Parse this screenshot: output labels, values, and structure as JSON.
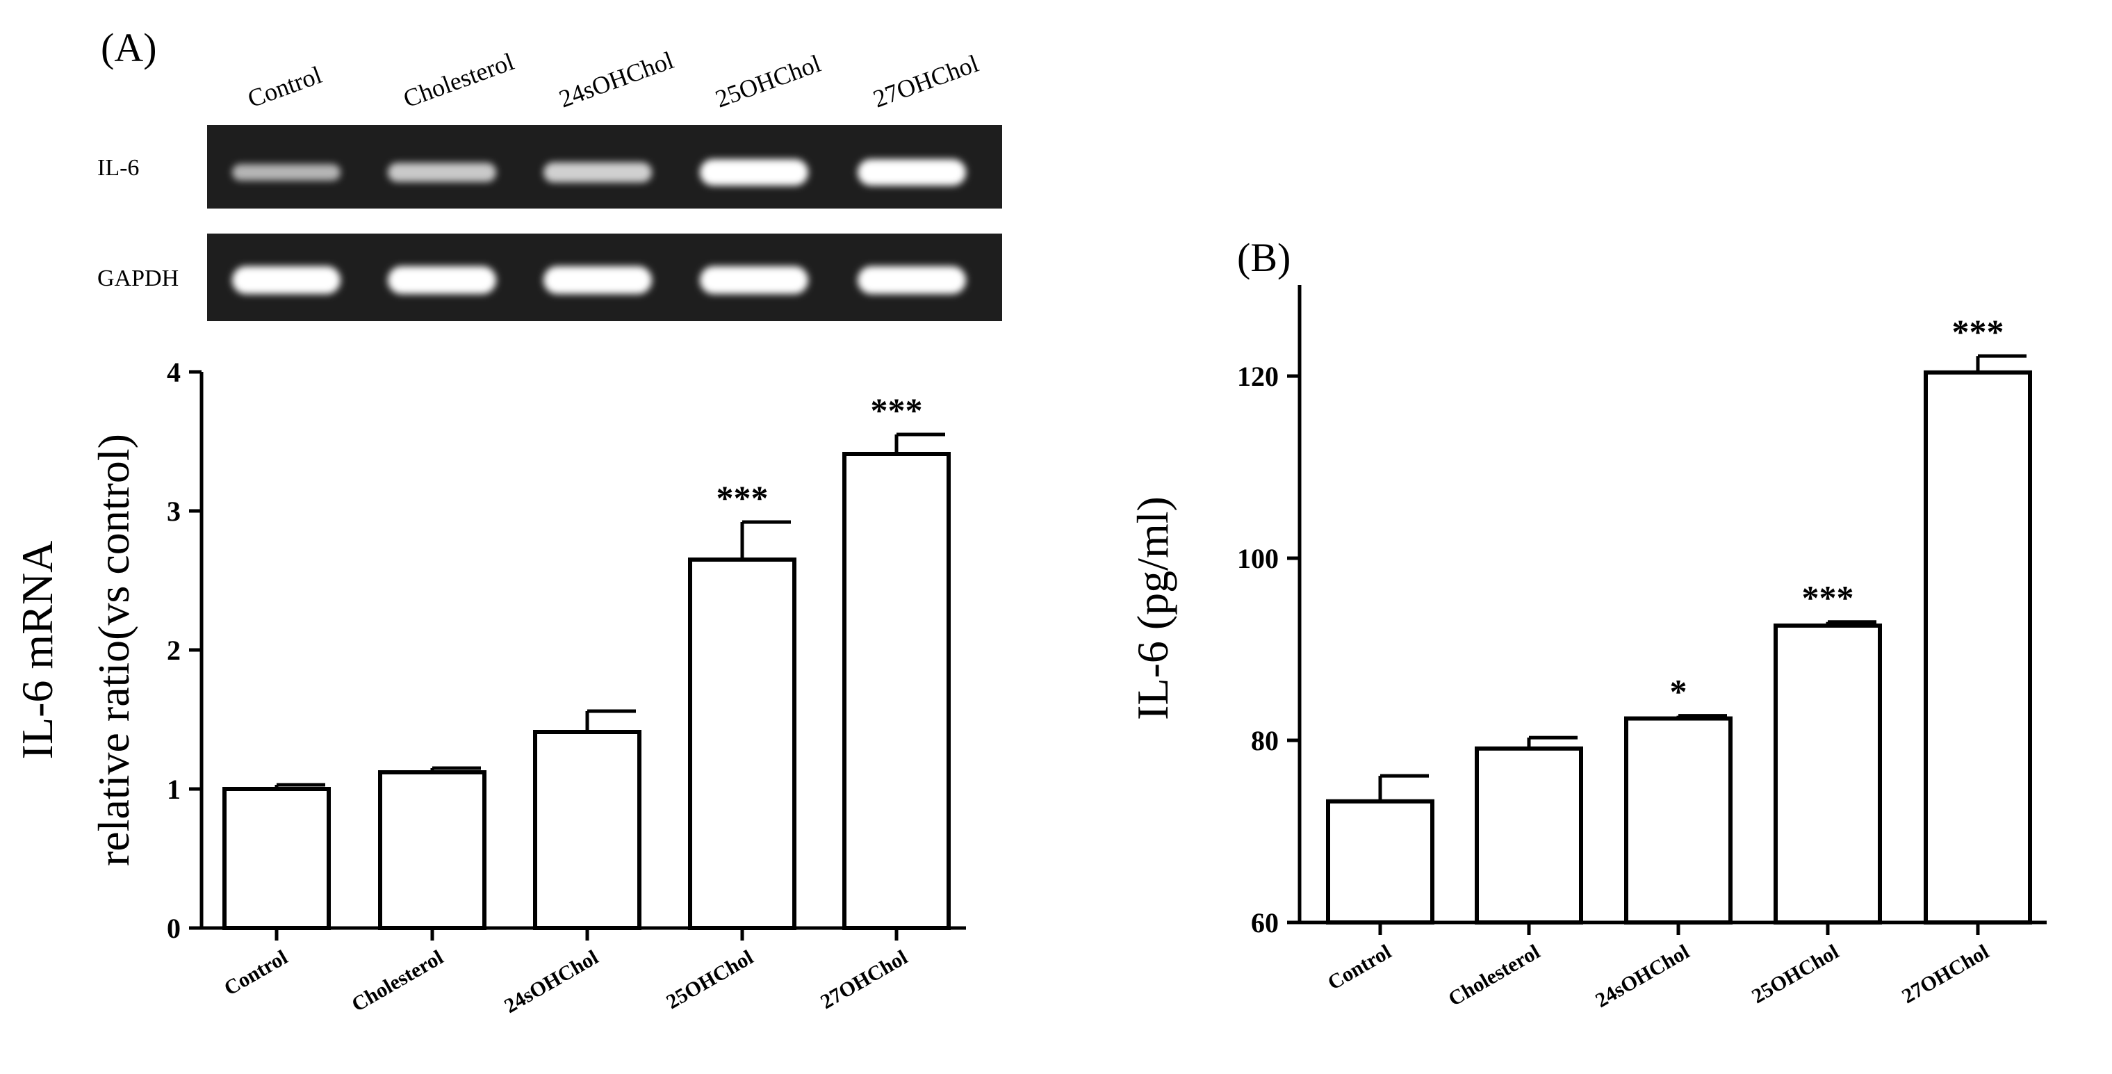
{
  "chart_data": [
    {
      "panel": "(A)",
      "type": "bar",
      "gel": {
        "lanes": [
          "Control",
          "Cholesterol",
          "24sOHChol",
          "25OHChol",
          "27OHChol"
        ],
        "rows": [
          {
            "name": "IL-6",
            "intensity": [
              0.45,
              0.6,
              0.65,
              1.0,
              1.0
            ]
          },
          {
            "name": "GAPDH",
            "intensity": [
              1.0,
              1.0,
              1.0,
              1.0,
              1.0
            ]
          }
        ]
      },
      "categories": [
        "Control",
        "Cholesterol",
        "24sOHChol",
        "25OHChol",
        "27OHChol"
      ],
      "values": [
        1.0,
        1.12,
        1.41,
        2.65,
        3.41
      ],
      "errors": [
        0.03,
        0.03,
        0.15,
        0.27,
        0.14
      ],
      "significance": [
        "",
        "",
        "",
        "***",
        "***"
      ],
      "ylabel_line1": "IL-6 mRNA",
      "ylabel_line2": "relative ratio(vs control)",
      "ylim": [
        0,
        4
      ],
      "yticks": [
        0,
        1,
        2,
        3,
        4
      ]
    },
    {
      "panel": "(B)",
      "type": "bar",
      "categories": [
        "Control",
        "Cholesterol",
        "24sOHChol",
        "25OHChol",
        "27OHChol"
      ],
      "values": [
        73.3,
        79.1,
        82.4,
        92.6,
        120.4
      ],
      "errors": [
        2.8,
        1.2,
        0.3,
        0.4,
        1.8
      ],
      "significance": [
        "",
        "",
        "*",
        "***",
        "***"
      ],
      "ylabel": "IL-6  (pg/ml)",
      "ylim": [
        60,
        130
      ],
      "yticks": [
        60,
        80,
        100,
        120
      ]
    }
  ]
}
